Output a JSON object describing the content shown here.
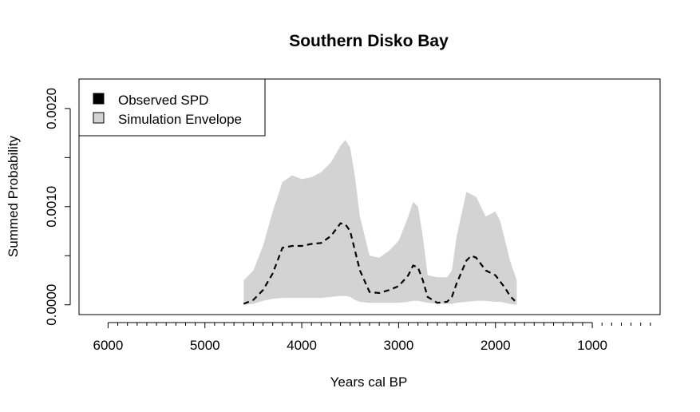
{
  "chart_data": {
    "type": "area",
    "title": "Southern Disko Bay",
    "xlabel": "Years cal BP",
    "ylabel": "Summed Probability",
    "x_reversed": true,
    "xlim": [
      6300,
      300
    ],
    "ylim": [
      -0.0001,
      0.0023
    ],
    "x_ticks": [
      6000,
      5000,
      4000,
      3000,
      2000,
      1000
    ],
    "x_tick_labels": [
      "6000",
      "5000",
      "4000",
      "3000",
      "2000",
      "1000"
    ],
    "y_ticks": [
      0.0,
      0.001,
      0.002
    ],
    "y_tick_labels": [
      "0.0000",
      "0.0010",
      "0.0020"
    ],
    "grid": false,
    "legend": {
      "position": "top-left",
      "items": [
        {
          "label": "Observed SPD",
          "color": "#000000"
        },
        {
          "label": "Simulation Envelope",
          "color": "#d3d3d3"
        }
      ]
    },
    "series": [
      {
        "name": "Simulation Envelope",
        "kind": "band",
        "color": "#d3d3d3",
        "x": [
          4600,
          4500,
          4400,
          4300,
          4200,
          4100,
          4000,
          3900,
          3800,
          3700,
          3600,
          3550,
          3500,
          3450,
          3400,
          3300,
          3200,
          3100,
          3000,
          2900,
          2850,
          2800,
          2750,
          2700,
          2600,
          2500,
          2450,
          2400,
          2300,
          2200,
          2100,
          2000,
          1950,
          1900,
          1850,
          1780
        ],
        "lower": [
          0.0,
          1e-05,
          4e-05,
          6e-05,
          7e-05,
          7e-05,
          7e-05,
          7e-05,
          7e-05,
          8e-05,
          9e-05,
          9e-05,
          8e-05,
          5e-05,
          3e-05,
          2e-05,
          2e-05,
          2e-05,
          2e-05,
          3e-05,
          4e-05,
          4e-05,
          3e-05,
          2e-05,
          1e-05,
          1e-05,
          1e-05,
          2e-05,
          3e-05,
          4e-05,
          4e-05,
          3e-05,
          3e-05,
          2e-05,
          1e-05,
          0.0
        ],
        "upper": [
          0.00025,
          0.00035,
          0.0006,
          0.00095,
          0.00125,
          0.00132,
          0.00128,
          0.0013,
          0.00135,
          0.00145,
          0.00162,
          0.00168,
          0.0016,
          0.0013,
          0.0009,
          0.0005,
          0.00048,
          0.00055,
          0.00065,
          0.0009,
          0.00105,
          0.001,
          0.0007,
          0.0003,
          0.00028,
          0.00028,
          0.00035,
          0.0007,
          0.00115,
          0.0011,
          0.0009,
          0.00095,
          0.00085,
          0.00065,
          0.00045,
          0.00025
        ]
      },
      {
        "name": "Observed SPD",
        "kind": "line",
        "style": "dashed",
        "color": "#000000",
        "x": [
          4600,
          4500,
          4400,
          4300,
          4200,
          4100,
          4000,
          3900,
          3800,
          3700,
          3600,
          3550,
          3500,
          3450,
          3400,
          3300,
          3200,
          3100,
          3000,
          2900,
          2850,
          2800,
          2750,
          2700,
          2600,
          2500,
          2450,
          2400,
          2300,
          2250,
          2200,
          2100,
          2000,
          1900,
          1850,
          1800
        ],
        "values": [
          1e-05,
          5e-05,
          0.00015,
          0.00032,
          0.00058,
          0.0006,
          0.0006,
          0.00062,
          0.00063,
          0.0007,
          0.00083,
          0.00082,
          0.00075,
          0.00055,
          0.00035,
          0.00013,
          0.00012,
          0.00015,
          0.00019,
          0.0003,
          0.0004,
          0.00038,
          0.00025,
          8e-05,
          2e-05,
          3e-05,
          8e-05,
          0.00022,
          0.00045,
          0.0005,
          0.00048,
          0.00035,
          0.0003,
          0.00017,
          9e-05,
          4e-05
        ]
      }
    ]
  }
}
